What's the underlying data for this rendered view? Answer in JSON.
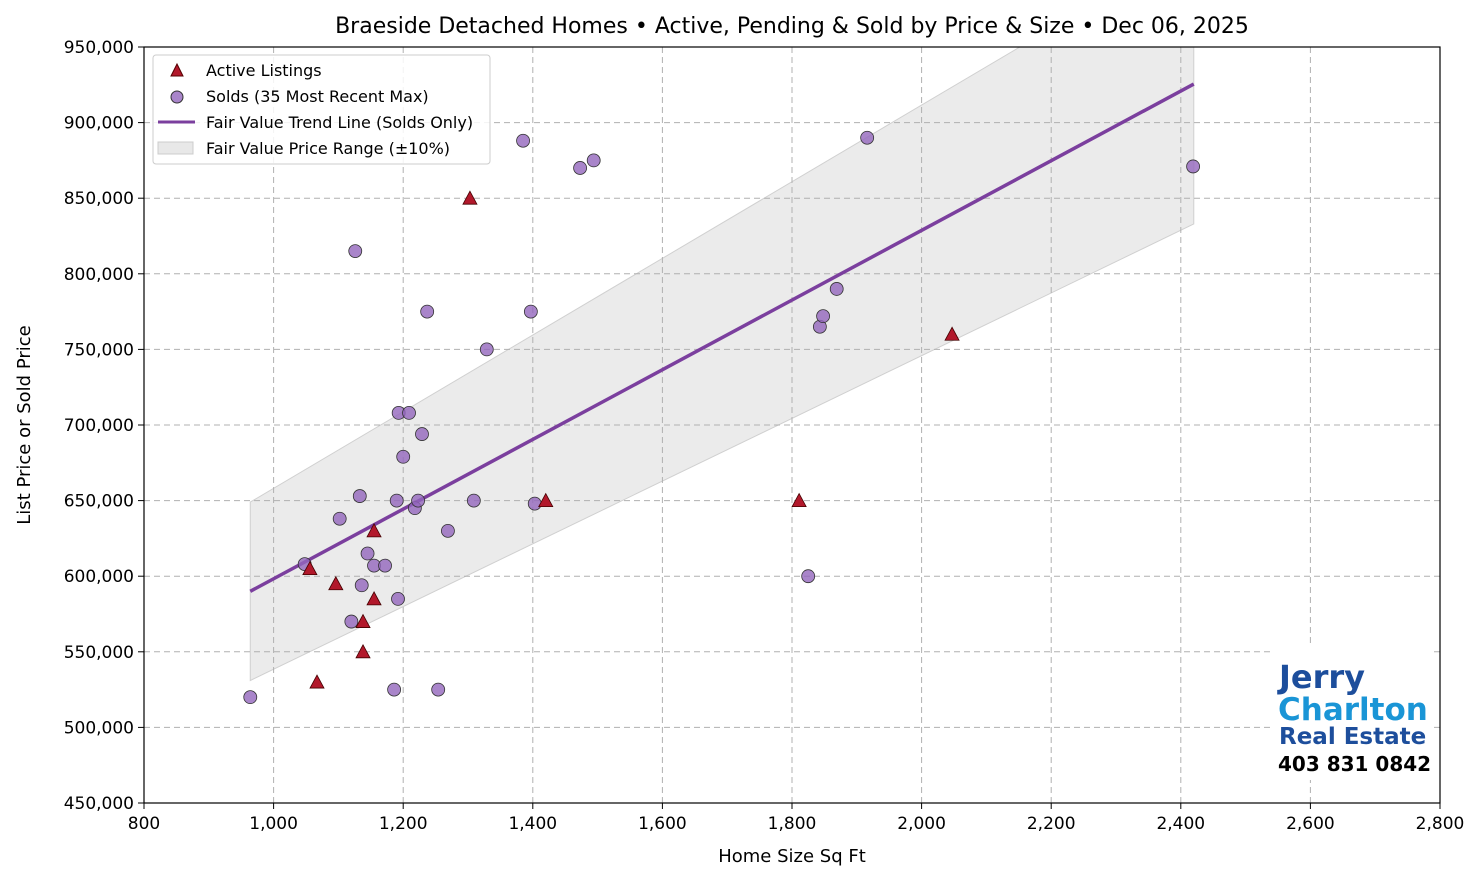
{
  "chart_data": {
    "type": "scatter",
    "title": "Braeside Detached Homes • Active, Pending & Sold by Price & Size • Dec 06, 2025",
    "xlabel": "Home Size Sq Ft",
    "ylabel": "List Price or Sold Price",
    "xlim": [
      800,
      2800
    ],
    "ylim": [
      450000,
      950000
    ],
    "xticks": [
      800,
      1000,
      1200,
      1400,
      1600,
      1800,
      2000,
      2200,
      2400,
      2600,
      2800
    ],
    "xtick_labels": [
      "800",
      "1,000",
      "1,200",
      "1,400",
      "1,600",
      "1,800",
      "2,000",
      "2,200",
      "2,400",
      "2,600",
      "2,800"
    ],
    "yticks": [
      450000,
      500000,
      550000,
      600000,
      650000,
      700000,
      750000,
      800000,
      850000,
      900000,
      950000
    ],
    "ytick_labels": [
      "450,000",
      "500,000",
      "550,000",
      "600,000",
      "650,000",
      "700,000",
      "750,000",
      "800,000",
      "850,000",
      "900,000",
      "950,000"
    ],
    "grid": true,
    "legend_position": "top-left",
    "series": [
      {
        "name": "Active Listings",
        "marker": "triangle",
        "color": "#b2182b",
        "points": [
          [
            1303,
            850000
          ],
          [
            2047,
            760000
          ],
          [
            1811,
            650000
          ],
          [
            1420,
            650000
          ],
          [
            1155,
            630000
          ],
          [
            1056,
            605000
          ],
          [
            1096,
            595000
          ],
          [
            1155,
            585000
          ],
          [
            1138,
            570000
          ],
          [
            1138,
            550000
          ],
          [
            1067,
            530000
          ]
        ]
      },
      {
        "name": "Solds (35 Most Recent Max)",
        "marker": "circle",
        "color": "#9467bd",
        "points": [
          [
            964,
            520000
          ],
          [
            1048,
            608000
          ],
          [
            1102,
            638000
          ],
          [
            1126,
            815000
          ],
          [
            1133,
            653000
          ],
          [
            1120,
            570000
          ],
          [
            1136,
            594000
          ],
          [
            1145,
            615000
          ],
          [
            1155,
            607000
          ],
          [
            1172,
            607000
          ],
          [
            1192,
            585000
          ],
          [
            1186,
            525000
          ],
          [
            1193,
            708000
          ],
          [
            1209,
            708000
          ],
          [
            1190,
            650000
          ],
          [
            1200,
            679000
          ],
          [
            1218,
            645000
          ],
          [
            1223,
            650000
          ],
          [
            1229,
            694000
          ],
          [
            1237,
            775000
          ],
          [
            1254,
            525000
          ],
          [
            1269,
            630000
          ],
          [
            1309,
            650000
          ],
          [
            1329,
            750000
          ],
          [
            1385,
            888000
          ],
          [
            1397,
            775000
          ],
          [
            1403,
            648000
          ],
          [
            1473,
            870000
          ],
          [
            1494,
            875000
          ],
          [
            1825,
            600000
          ],
          [
            1843,
            765000
          ],
          [
            1848,
            772000
          ],
          [
            1869,
            790000
          ],
          [
            1916,
            890000
          ],
          [
            2419,
            871000
          ]
        ]
      },
      {
        "name": "Fair Value Trend Line (Solds Only)",
        "type": "line",
        "color": "#7b3f9e",
        "points": [
          [
            964,
            590000
          ],
          [
            2420,
            925500
          ]
        ]
      },
      {
        "name": "Fair Value Price Range (±10%)",
        "type": "band",
        "color": "#e0e0e0",
        "band_pct": 10
      }
    ]
  },
  "logo": {
    "line1": "Jerry",
    "line2": "Charlton",
    "line3": "Real Estate",
    "phone": "403 831 0842"
  }
}
